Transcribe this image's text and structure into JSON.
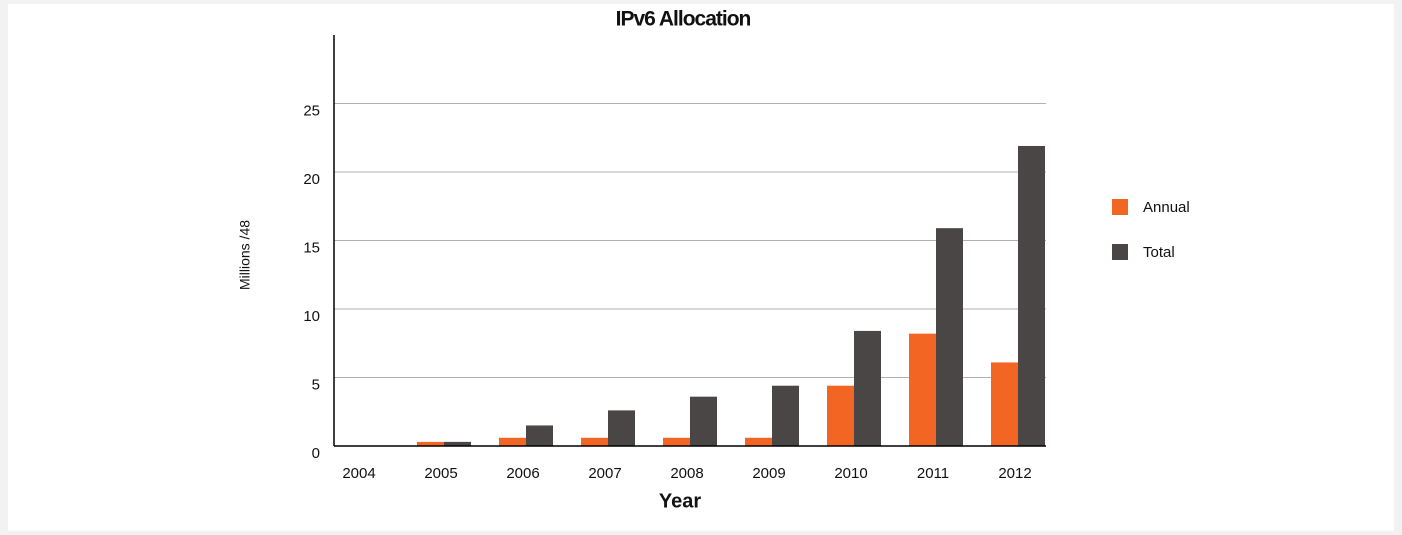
{
  "chart_data": {
    "type": "bar",
    "title": "IPv6 Allocation",
    "x_label": "Year",
    "y_label": "Millions /48",
    "categories": [
      "2004",
      "2005",
      "2006",
      "2007",
      "2008",
      "2009",
      "2010",
      "2011",
      "2012"
    ],
    "series": [
      {
        "name": "Annual",
        "color": "#f26522",
        "values": [
          0,
          0.3,
          0.6,
          0.6,
          0.6,
          0.6,
          4.4,
          8.2,
          6.1
        ]
      },
      {
        "name": "Total",
        "color": "#4a4646",
        "values": [
          0,
          0.3,
          1.5,
          2.6,
          3.6,
          4.4,
          8.4,
          15.9,
          21.9
        ]
      }
    ],
    "ylim": [
      0,
      30
    ],
    "yticks": [
      0,
      5,
      10,
      15,
      20,
      25
    ],
    "grid": true,
    "legend": "right"
  }
}
